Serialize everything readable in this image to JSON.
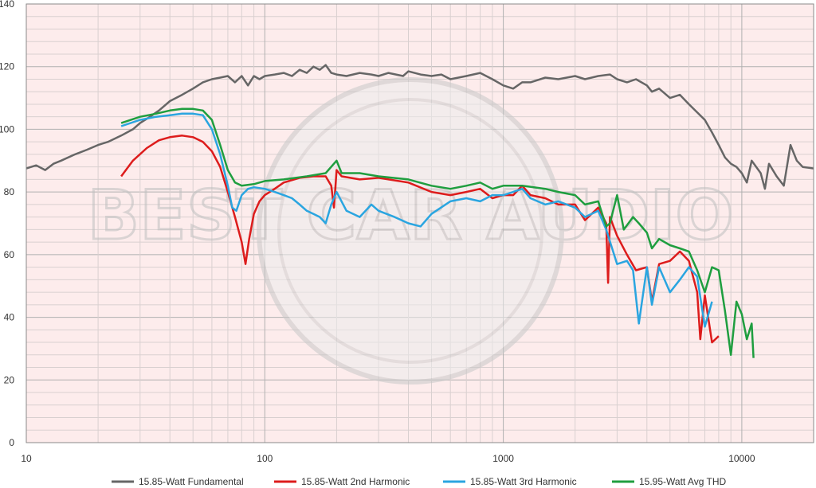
{
  "chart_data": {
    "type": "line",
    "xscale": "log",
    "xlim": [
      10,
      20000
    ],
    "ylim": [
      0,
      140
    ],
    "xticks": [
      "10",
      "100",
      "1000",
      "10000"
    ],
    "yticks": [
      "0",
      "20",
      "40",
      "60",
      "80",
      "100",
      "120",
      "140"
    ],
    "grid": true,
    "legend_position": "bottom",
    "colors": {
      "background": "#fdecec",
      "major_grid": "#b0b0b0",
      "minor_grid": "#d9d0d0"
    },
    "watermark": "BEST CAR AUDIO",
    "series": [
      {
        "name": "15.85-Watt Fundamental",
        "color": "#666666",
        "points": [
          [
            10,
            87.5
          ],
          [
            11,
            88.5
          ],
          [
            12,
            87
          ],
          [
            13,
            89
          ],
          [
            14,
            90
          ],
          [
            16,
            92
          ],
          [
            18,
            93.5
          ],
          [
            20,
            95
          ],
          [
            22,
            96
          ],
          [
            25,
            98
          ],
          [
            28,
            100
          ],
          [
            30,
            102
          ],
          [
            33,
            104
          ],
          [
            36,
            106
          ],
          [
            40,
            109
          ],
          [
            45,
            111
          ],
          [
            50,
            113
          ],
          [
            55,
            115
          ],
          [
            60,
            116
          ],
          [
            65,
            116.5
          ],
          [
            70,
            117
          ],
          [
            75,
            115
          ],
          [
            80,
            117
          ],
          [
            85,
            114
          ],
          [
            90,
            117
          ],
          [
            95,
            116
          ],
          [
            100,
            117
          ],
          [
            110,
            117.5
          ],
          [
            120,
            118
          ],
          [
            130,
            117
          ],
          [
            140,
            119
          ],
          [
            150,
            118
          ],
          [
            160,
            120
          ],
          [
            170,
            119
          ],
          [
            180,
            120.5
          ],
          [
            190,
            118
          ],
          [
            200,
            117.5
          ],
          [
            220,
            117
          ],
          [
            250,
            118
          ],
          [
            280,
            117.5
          ],
          [
            300,
            117
          ],
          [
            330,
            118
          ],
          [
            380,
            117
          ],
          [
            400,
            118.5
          ],
          [
            450,
            117.5
          ],
          [
            500,
            117
          ],
          [
            550,
            117.5
          ],
          [
            600,
            116
          ],
          [
            700,
            117
          ],
          [
            800,
            118
          ],
          [
            900,
            116
          ],
          [
            1000,
            114
          ],
          [
            1100,
            113
          ],
          [
            1200,
            115
          ],
          [
            1300,
            115
          ],
          [
            1500,
            116.5
          ],
          [
            1700,
            116
          ],
          [
            2000,
            117
          ],
          [
            2200,
            116
          ],
          [
            2500,
            117
          ],
          [
            2800,
            117.5
          ],
          [
            3000,
            116
          ],
          [
            3300,
            115
          ],
          [
            3600,
            116
          ],
          [
            4000,
            114
          ],
          [
            4200,
            112
          ],
          [
            4500,
            113
          ],
          [
            5000,
            110
          ],
          [
            5500,
            111
          ],
          [
            6000,
            108
          ],
          [
            7000,
            103
          ],
          [
            7500,
            99
          ],
          [
            8000,
            95
          ],
          [
            8500,
            91
          ],
          [
            9000,
            89
          ],
          [
            9500,
            88
          ],
          [
            10000,
            86
          ],
          [
            10500,
            83
          ],
          [
            11000,
            90
          ],
          [
            12000,
            86
          ],
          [
            12500,
            81
          ],
          [
            13000,
            89
          ],
          [
            14000,
            85
          ],
          [
            15000,
            82
          ],
          [
            16000,
            95
          ],
          [
            17000,
            90
          ],
          [
            18000,
            88
          ],
          [
            20000,
            87.5
          ]
        ]
      },
      {
        "name": "15.85-Watt 2nd Harmonic",
        "color": "#dd1c1c",
        "points": [
          [
            25,
            85
          ],
          [
            28,
            90
          ],
          [
            32,
            94
          ],
          [
            36,
            96.5
          ],
          [
            40,
            97.5
          ],
          [
            45,
            98
          ],
          [
            50,
            97.5
          ],
          [
            55,
            96
          ],
          [
            60,
            93
          ],
          [
            65,
            88
          ],
          [
            70,
            80
          ],
          [
            75,
            72
          ],
          [
            80,
            64
          ],
          [
            83,
            57
          ],
          [
            86,
            65
          ],
          [
            90,
            73
          ],
          [
            95,
            77
          ],
          [
            100,
            79
          ],
          [
            110,
            81
          ],
          [
            120,
            83
          ],
          [
            140,
            84.5
          ],
          [
            160,
            85
          ],
          [
            180,
            85
          ],
          [
            190,
            82
          ],
          [
            195,
            75
          ],
          [
            200,
            87
          ],
          [
            210,
            85
          ],
          [
            250,
            84
          ],
          [
            300,
            84.5
          ],
          [
            400,
            83
          ],
          [
            500,
            80
          ],
          [
            600,
            79
          ],
          [
            700,
            80
          ],
          [
            800,
            81
          ],
          [
            900,
            78
          ],
          [
            1000,
            79
          ],
          [
            1100,
            79
          ],
          [
            1200,
            82
          ],
          [
            1300,
            79
          ],
          [
            1500,
            78
          ],
          [
            1700,
            76
          ],
          [
            2000,
            76
          ],
          [
            2200,
            71
          ],
          [
            2500,
            75
          ],
          [
            2700,
            70
          ],
          [
            2750,
            51
          ],
          [
            2800,
            72
          ],
          [
            3000,
            66
          ],
          [
            3300,
            60
          ],
          [
            3600,
            55
          ],
          [
            4000,
            56
          ],
          [
            4200,
            45
          ],
          [
            4500,
            57
          ],
          [
            5000,
            58
          ],
          [
            5500,
            61
          ],
          [
            6000,
            58
          ],
          [
            6500,
            48
          ],
          [
            6700,
            33
          ],
          [
            7000,
            47
          ],
          [
            7500,
            32
          ],
          [
            8000,
            34
          ]
        ]
      },
      {
        "name": "15.85-Watt 3rd Harmonic",
        "color": "#2aa5e0",
        "points": [
          [
            25,
            101
          ],
          [
            30,
            103
          ],
          [
            35,
            104
          ],
          [
            40,
            104.5
          ],
          [
            45,
            105
          ],
          [
            50,
            105
          ],
          [
            55,
            104.5
          ],
          [
            60,
            100
          ],
          [
            65,
            92
          ],
          [
            70,
            82
          ],
          [
            73,
            75
          ],
          [
            76,
            74
          ],
          [
            80,
            79
          ],
          [
            85,
            81
          ],
          [
            90,
            81.5
          ],
          [
            100,
            81
          ],
          [
            110,
            80
          ],
          [
            120,
            79
          ],
          [
            130,
            78
          ],
          [
            140,
            76
          ],
          [
            150,
            74
          ],
          [
            160,
            73
          ],
          [
            170,
            72
          ],
          [
            180,
            70
          ],
          [
            190,
            76
          ],
          [
            200,
            80
          ],
          [
            220,
            74
          ],
          [
            250,
            72
          ],
          [
            280,
            76
          ],
          [
            300,
            74
          ],
          [
            350,
            72
          ],
          [
            400,
            70
          ],
          [
            450,
            69
          ],
          [
            500,
            73
          ],
          [
            600,
            77
          ],
          [
            700,
            78
          ],
          [
            800,
            77
          ],
          [
            900,
            79
          ],
          [
            1000,
            79
          ],
          [
            1100,
            80
          ],
          [
            1200,
            81
          ],
          [
            1300,
            78
          ],
          [
            1500,
            76
          ],
          [
            1700,
            77
          ],
          [
            2000,
            75
          ],
          [
            2200,
            72
          ],
          [
            2500,
            74
          ],
          [
            2700,
            68
          ],
          [
            3000,
            57
          ],
          [
            3300,
            58
          ],
          [
            3500,
            55
          ],
          [
            3700,
            38
          ],
          [
            4000,
            56
          ],
          [
            4200,
            44
          ],
          [
            4500,
            56
          ],
          [
            5000,
            48
          ],
          [
            5500,
            52
          ],
          [
            6000,
            56
          ],
          [
            6500,
            53
          ],
          [
            7000,
            37
          ],
          [
            7500,
            45
          ]
        ]
      },
      {
        "name": "15.95-Watt Avg THD",
        "color": "#1f9e3f",
        "points": [
          [
            25,
            102
          ],
          [
            30,
            104
          ],
          [
            35,
            105
          ],
          [
            40,
            106
          ],
          [
            45,
            106.5
          ],
          [
            50,
            106.5
          ],
          [
            55,
            106
          ],
          [
            60,
            103
          ],
          [
            65,
            95
          ],
          [
            70,
            87
          ],
          [
            75,
            83
          ],
          [
            80,
            82
          ],
          [
            90,
            82.5
          ],
          [
            100,
            83.5
          ],
          [
            120,
            84
          ],
          [
            150,
            85
          ],
          [
            180,
            86
          ],
          [
            200,
            90
          ],
          [
            210,
            86
          ],
          [
            250,
            86
          ],
          [
            300,
            85
          ],
          [
            400,
            84
          ],
          [
            500,
            82
          ],
          [
            600,
            81
          ],
          [
            700,
            82
          ],
          [
            800,
            83
          ],
          [
            900,
            81
          ],
          [
            1000,
            82
          ],
          [
            1200,
            82
          ],
          [
            1500,
            81
          ],
          [
            1700,
            80
          ],
          [
            2000,
            79
          ],
          [
            2200,
            76
          ],
          [
            2500,
            77
          ],
          [
            2700,
            69
          ],
          [
            2800,
            70
          ],
          [
            3000,
            79
          ],
          [
            3200,
            68
          ],
          [
            3500,
            72
          ],
          [
            3700,
            70
          ],
          [
            4000,
            67
          ],
          [
            4200,
            62
          ],
          [
            4500,
            65
          ],
          [
            5000,
            63
          ],
          [
            5500,
            62
          ],
          [
            6000,
            61
          ],
          [
            6500,
            55
          ],
          [
            7000,
            48
          ],
          [
            7500,
            56
          ],
          [
            8000,
            55
          ],
          [
            8500,
            42
          ],
          [
            9000,
            28
          ],
          [
            9500,
            45
          ],
          [
            10000,
            41
          ],
          [
            10500,
            33
          ],
          [
            11000,
            38
          ],
          [
            11200,
            27
          ]
        ]
      }
    ]
  }
}
